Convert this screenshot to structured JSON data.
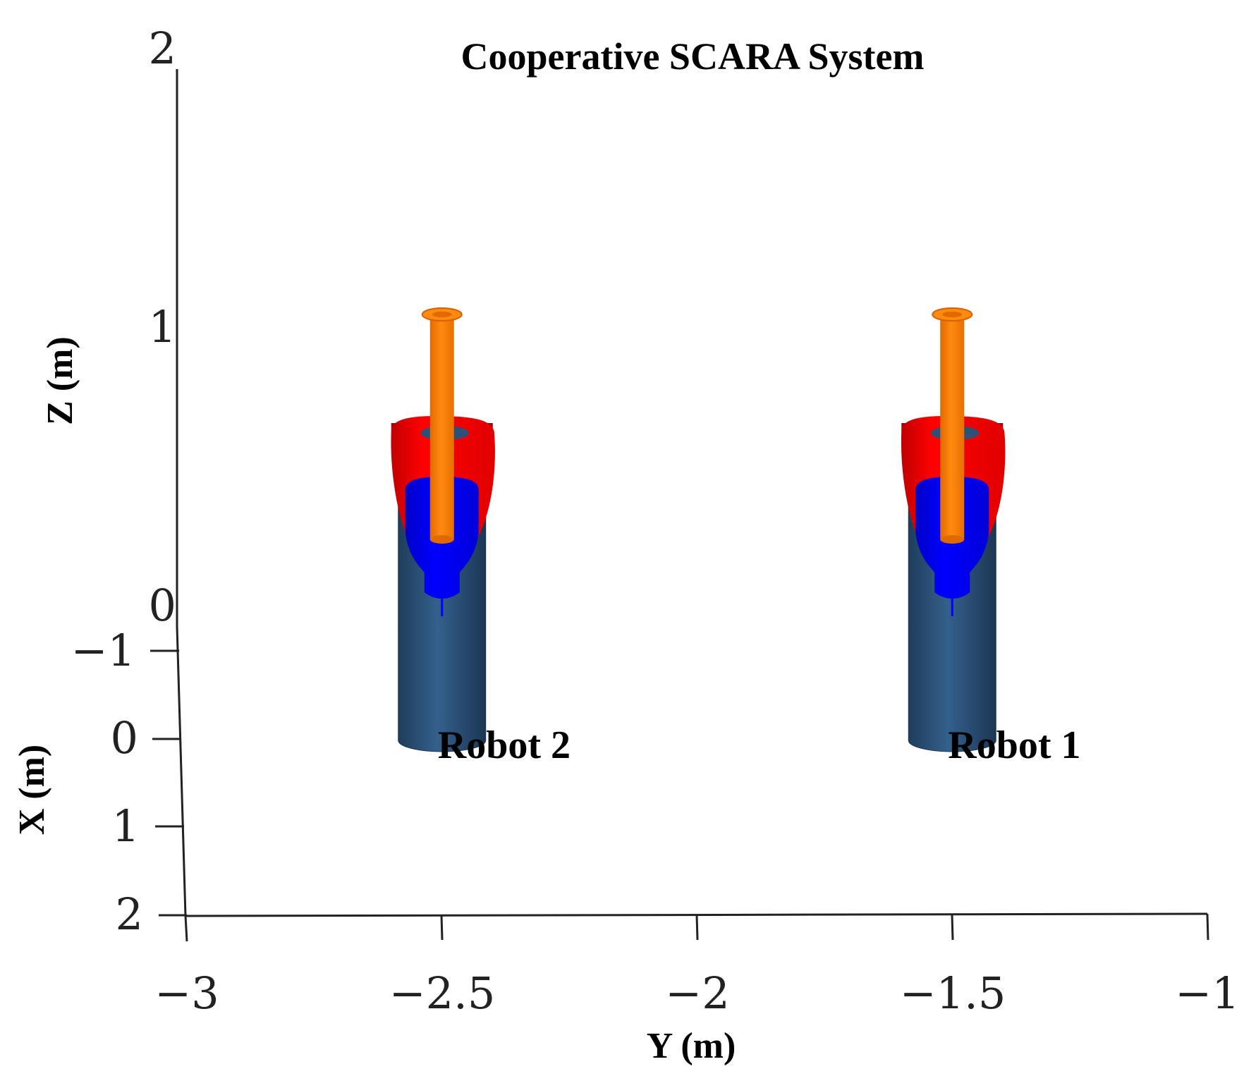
{
  "chart_data": {
    "type": "3d-scene",
    "title": "Cooperative SCARA System",
    "xlabel": "Y (m)",
    "ylabel": "X (m)",
    "zlabel": "Z (m)",
    "y_axis_ticks": [
      "−3",
      "−2.5",
      "−2",
      "−1.5",
      "−1"
    ],
    "x_axis_ticks": [
      "−1",
      "0",
      "1",
      "2"
    ],
    "z_axis_ticks": [
      "0",
      "1",
      "2"
    ],
    "ylim": [
      -3,
      -1
    ],
    "xlim": [
      -1,
      2
    ],
    "zlim": [
      0,
      2
    ],
    "robots": [
      {
        "label": "Robot 2",
        "y": -2.5,
        "x": 0
      },
      {
        "label": "Robot 1",
        "y": -1.5,
        "x": 0
      }
    ],
    "colors": {
      "base": "#2c5178",
      "link1": "#ff0000",
      "link2": "#0000ff",
      "tool": "#ff8000"
    }
  }
}
